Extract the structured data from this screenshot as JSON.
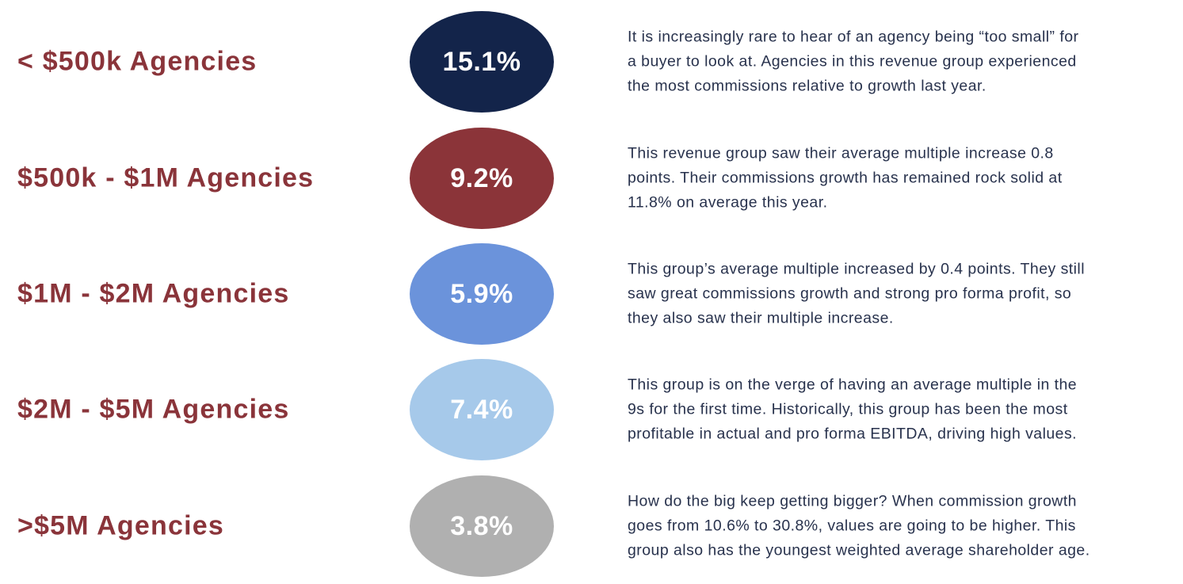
{
  "groups": [
    {
      "label": "< $500k Agencies",
      "value": "15.1%",
      "color": "#13244a",
      "lines": [
        "It is increasingly rare to hear of an agency being “too small” for",
        "a buyer to look at. Agencies in this revenue group experienced",
        "the most commissions relative to growth last year."
      ]
    },
    {
      "label": "$500k - $1M Agencies",
      "value": "9.2%",
      "color": "#8b3439",
      "lines": [
        "This revenue group saw their average multiple increase 0.8",
        "points. Their commissions growth has remained rock solid at",
        "11.8% on average this year."
      ]
    },
    {
      "label": "$1M - $2M Agencies",
      "value": "5.9%",
      "color": "#6b93db",
      "lines": [
        "This group’s average multiple increased by 0.4 points. They still",
        "saw great commissions growth and strong pro forma profit, so",
        "they also saw their multiple increase."
      ]
    },
    {
      "label": "$2M - $5M Agencies",
      "value": "7.4%",
      "color": "#a6c9ea",
      "lines": [
        "This group is on the verge of having an average multiple in the",
        "9s for the first time. Historically, this group has been the most",
        "profitable in actual and pro forma EBITDA, driving high values."
      ]
    },
    {
      "label": ">$5M Agencies",
      "value": "3.8%",
      "color": "#b0b0b0",
      "lines": [
        "How do the big keep getting bigger? When commission growth",
        "goes from 10.6% to 30.8%, values are going to be higher. This",
        "group also has the youngest weighted average shareholder age."
      ]
    }
  ],
  "colors": {
    "label": "#8a343a",
    "text": "#28324d"
  }
}
